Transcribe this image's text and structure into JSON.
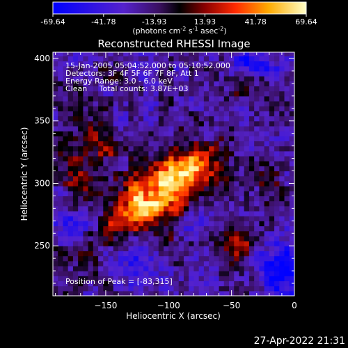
{
  "chart_data": {
    "type": "heatmap",
    "title": "Reconstructed RHESSI Image",
    "xlabel": "Heliocentric X (arcsec)",
    "ylabel": "Heliocentric Y (arcsec)",
    "xlim": [
      -192,
      0
    ],
    "ylim": [
      210,
      405
    ],
    "x_ticks": [
      -150,
      -100,
      -50,
      0
    ],
    "y_ticks": [
      250,
      300,
      350,
      400
    ],
    "colorbar": {
      "range": [
        -69.64,
        69.64
      ],
      "tick_labels": [
        "-69.64",
        "-41.78",
        "-13.93",
        "13.93",
        "41.78",
        "69.64"
      ],
      "unit_main": "(photons cm",
      "unit_exp1": "-2",
      "unit_mid1": " s",
      "unit_exp2": "-1",
      "unit_mid2": " asec",
      "unit_exp3": "-2",
      "unit_end": ")"
    },
    "annotations": {
      "line1": "15-Jan-2005 05:04:52.000 to 05:10:52.000",
      "line2": "Detectors: 3F 4F 5F 6F 7F 8F, Att 1",
      "line3": "Energy Range: 3.0 - 6.0 keV",
      "line4": "Clean     Total counts: 3.87E+03",
      "peak": "Position of Peak = [-83,315]"
    },
    "peak_position": [
      -83,
      315
    ],
    "emission_sources": [
      {
        "x": -88,
        "y": 312,
        "sx": 14,
        "sy": 12,
        "amp": 68
      },
      {
        "x": -105,
        "y": 292,
        "sx": 18,
        "sy": 14,
        "amp": 55
      },
      {
        "x": -122,
        "y": 282,
        "sx": 16,
        "sy": 12,
        "amp": 42
      },
      {
        "x": -140,
        "y": 268,
        "sx": 14,
        "sy": 10,
        "amp": 30
      },
      {
        "x": -160,
        "y": 328,
        "sx": 18,
        "sy": 14,
        "amp": 30
      },
      {
        "x": -172,
        "y": 300,
        "sx": 10,
        "sy": 12,
        "amp": 22
      },
      {
        "x": -60,
        "y": 318,
        "sx": 12,
        "sy": 12,
        "amp": 25
      },
      {
        "x": -45,
        "y": 248,
        "sx": 9,
        "sy": 9,
        "amp": 38
      },
      {
        "x": -165,
        "y": 235,
        "sx": 12,
        "sy": 10,
        "amp": 22
      },
      {
        "x": -150,
        "y": 388,
        "sx": 10,
        "sy": 8,
        "amp": 18
      },
      {
        "x": -35,
        "y": 378,
        "sx": 10,
        "sy": 8,
        "amp": 20
      },
      {
        "x": -20,
        "y": 290,
        "sx": 12,
        "sy": 16,
        "amp": 18
      },
      {
        "x": -95,
        "y": 252,
        "sx": 12,
        "sy": 8,
        "amp": 15
      },
      {
        "x": -30,
        "y": 395,
        "sx": 14,
        "sy": 6,
        "amp": -45
      },
      {
        "x": -10,
        "y": 230,
        "sx": 14,
        "sy": 14,
        "amp": -45
      },
      {
        "x": -80,
        "y": 270,
        "sx": 10,
        "sy": 10,
        "amp": -25
      },
      {
        "x": -130,
        "y": 235,
        "sx": 14,
        "sy": 8,
        "amp": -20
      },
      {
        "x": -175,
        "y": 270,
        "sx": 10,
        "sy": 8,
        "amp": -20
      }
    ]
  },
  "footer": {
    "timestamp": "27-Apr-2022 21:31"
  }
}
